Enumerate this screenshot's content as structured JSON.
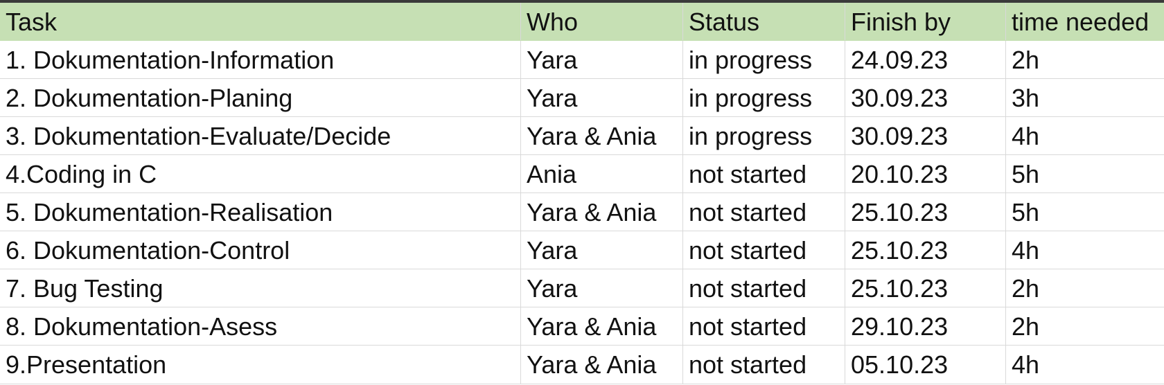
{
  "table": {
    "headers": [
      "Task",
      "Who",
      "Status",
      "Finish by",
      "time needed"
    ],
    "rows": [
      [
        "1. Dokumentation-Information",
        "Yara",
        "in progress",
        "24.09.23",
        "2h"
      ],
      [
        "2. Dokumentation-Planing",
        "Yara",
        "in progress",
        "30.09.23",
        "3h"
      ],
      [
        "3. Dokumentation-Evaluate/Decide",
        "Yara & Ania",
        "in progress",
        "30.09.23",
        "4h"
      ],
      [
        "4.Coding in C",
        "Ania",
        "not started",
        "20.10.23",
        "5h"
      ],
      [
        "5. Dokumentation-Realisation",
        "Yara & Ania",
        "not started",
        "25.10.23",
        "5h"
      ],
      [
        "6. Dokumentation-Control",
        "Yara",
        "not started",
        "25.10.23",
        "4h"
      ],
      [
        "7. Bug Testing",
        "Yara",
        "not started",
        "25.10.23",
        "2h"
      ],
      [
        "8. Dokumentation-Asess",
        "Yara & Ania",
        "not started",
        "29.10.23",
        "2h"
      ],
      [
        "9.Presentation",
        "Yara & Ania",
        "not started",
        "05.10.23",
        "4h"
      ]
    ]
  },
  "colors": {
    "header_background": "#c6e0b4",
    "gridline": "#d9d9d9",
    "text": "#111111",
    "top_border": "#3a3a3a"
  }
}
